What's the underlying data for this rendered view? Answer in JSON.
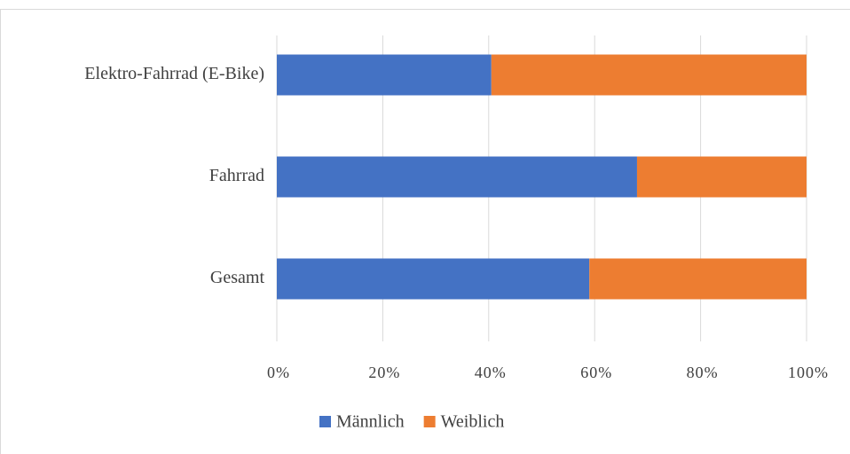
{
  "chart_data": {
    "type": "stacked-bar-horizontal",
    "categories": [
      "Elektro-Fahrrad (E-Bike)",
      "Fahrrad",
      "Gesamt"
    ],
    "series": [
      {
        "name": "Männlich",
        "color": "#4472c4",
        "values": [
          40.5,
          68,
          59
        ]
      },
      {
        "name": "Weiblich",
        "color": "#ed7d31",
        "values": [
          59.5,
          32,
          41
        ]
      }
    ],
    "xlim": [
      0,
      100
    ],
    "xticks": [
      {
        "value": 0,
        "label": "0%"
      },
      {
        "value": 20,
        "label": "20%"
      },
      {
        "value": 40,
        "label": "40%"
      },
      {
        "value": 60,
        "label": "60%"
      },
      {
        "value": 80,
        "label": "80%"
      },
      {
        "value": 100,
        "label": "100%"
      }
    ],
    "grid": true,
    "legend": "bottom"
  }
}
